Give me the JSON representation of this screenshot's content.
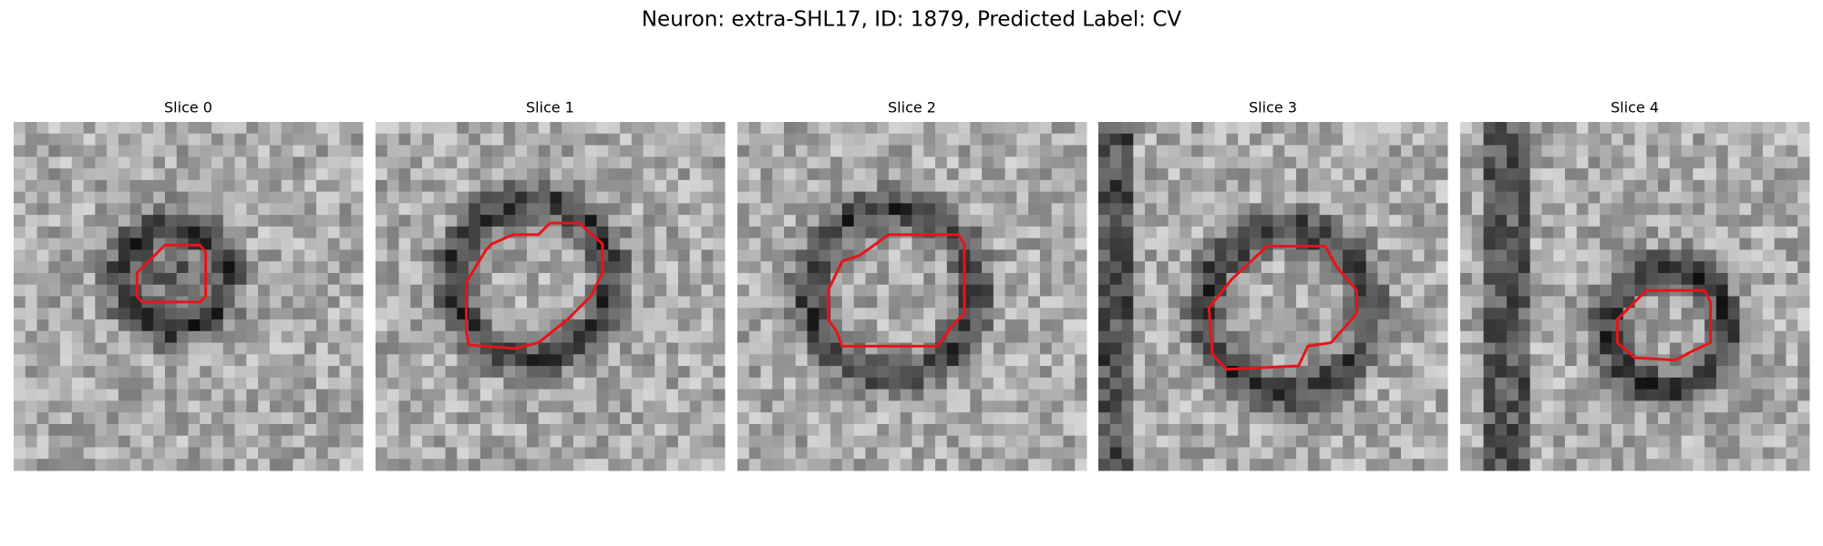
{
  "title": "Neuron: extra-SHL17, ID: 1879, Predicted Label: CV",
  "panels": [
    {
      "label": "Slice 0"
    },
    {
      "label": "Slice 1"
    },
    {
      "label": "Slice 2"
    },
    {
      "label": "Slice 3"
    },
    {
      "label": "Slice 4"
    }
  ]
}
